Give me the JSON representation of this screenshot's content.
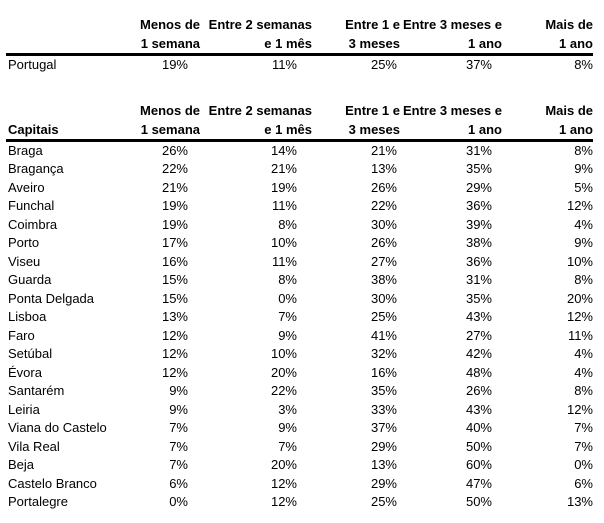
{
  "page": {
    "background_color": "#ffffff",
    "text_color": "#000000",
    "col_headers": [
      {
        "line1": "Menos de",
        "line2": "1 semana"
      },
      {
        "line1": "Entre 2 semanas",
        "line2": "e 1 mês"
      },
      {
        "line1": "Entre 1 e",
        "line2": "3 meses"
      },
      {
        "line1": "Entre 3 meses e",
        "line2": "1 ano"
      },
      {
        "line1": "Mais de",
        "line2": "1 ano"
      }
    ]
  },
  "country_table": {
    "label_header": "",
    "rows": [
      {
        "label": "Portugal",
        "values": [
          "19%",
          "11%",
          "25%",
          "37%",
          "8%"
        ]
      }
    ]
  },
  "capitals_table": {
    "label_header": "Capitais",
    "rows": [
      {
        "label": "Braga",
        "values": [
          "26%",
          "14%",
          "21%",
          "31%",
          "8%"
        ]
      },
      {
        "label": "Bragança",
        "values": [
          "22%",
          "21%",
          "13%",
          "35%",
          "9%"
        ]
      },
      {
        "label": "Aveiro",
        "values": [
          "21%",
          "19%",
          "26%",
          "29%",
          "5%"
        ]
      },
      {
        "label": "Funchal",
        "values": [
          "19%",
          "11%",
          "22%",
          "36%",
          "12%"
        ]
      },
      {
        "label": "Coimbra",
        "values": [
          "19%",
          "8%",
          "30%",
          "39%",
          "4%"
        ]
      },
      {
        "label": "Porto",
        "values": [
          "17%",
          "10%",
          "26%",
          "38%",
          "9%"
        ]
      },
      {
        "label": "Viseu",
        "values": [
          "16%",
          "11%",
          "27%",
          "36%",
          "10%"
        ]
      },
      {
        "label": "Guarda",
        "values": [
          "15%",
          "8%",
          "38%",
          "31%",
          "8%"
        ]
      },
      {
        "label": "Ponta Delgada",
        "values": [
          "15%",
          "0%",
          "30%",
          "35%",
          "20%"
        ]
      },
      {
        "label": "Lisboa",
        "values": [
          "13%",
          "7%",
          "25%",
          "43%",
          "12%"
        ]
      },
      {
        "label": "Faro",
        "values": [
          "12%",
          "9%",
          "41%",
          "27%",
          "11%"
        ]
      },
      {
        "label": "Setúbal",
        "values": [
          "12%",
          "10%",
          "32%",
          "42%",
          "4%"
        ]
      },
      {
        "label": "Évora",
        "values": [
          "12%",
          "20%",
          "16%",
          "48%",
          "4%"
        ]
      },
      {
        "label": "Santarém",
        "values": [
          "9%",
          "22%",
          "35%",
          "26%",
          "8%"
        ]
      },
      {
        "label": "Leiria",
        "values": [
          "9%",
          "3%",
          "33%",
          "43%",
          "12%"
        ]
      },
      {
        "label": "Viana do Castelo",
        "values": [
          "7%",
          "9%",
          "37%",
          "40%",
          "7%"
        ]
      },
      {
        "label": "Vila Real",
        "values": [
          "7%",
          "7%",
          "29%",
          "50%",
          "7%"
        ]
      },
      {
        "label": "Beja",
        "values": [
          "7%",
          "20%",
          "13%",
          "60%",
          "0%"
        ]
      },
      {
        "label": "Castelo Branco",
        "values": [
          "6%",
          "12%",
          "29%",
          "47%",
          "6%"
        ]
      },
      {
        "label": "Portalegre",
        "values": [
          "0%",
          "12%",
          "25%",
          "50%",
          "13%"
        ]
      }
    ]
  }
}
